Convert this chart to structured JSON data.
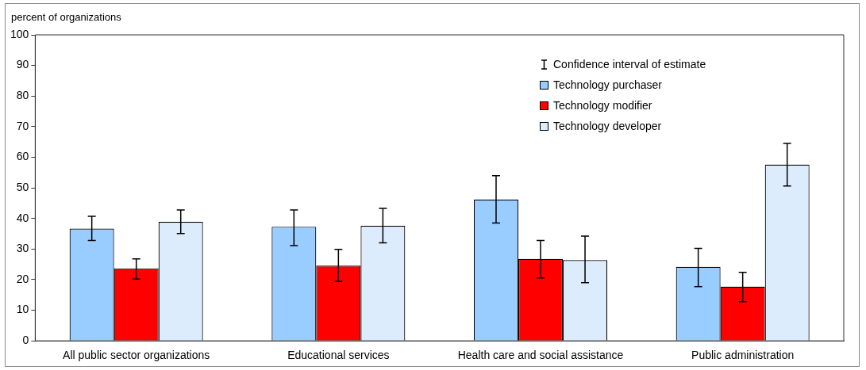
{
  "chart_data": {
    "type": "bar",
    "ylabel": "percent of organizations",
    "categories": [
      "All public sector organizations",
      "Educational services",
      "Health care and social assistance",
      "Public administration"
    ],
    "series": [
      {
        "name": "Technology purchaser",
        "color": "#99ccff",
        "values": [
          36.7,
          37.3,
          46.2,
          24.2
        ],
        "errors": [
          [
            32.8,
            40.7
          ],
          [
            31.1,
            42.8
          ],
          [
            38.5,
            54.0
          ],
          [
            17.7,
            30.2
          ]
        ]
      },
      {
        "name": "Technology modifier",
        "color": "#ff0000",
        "values": [
          23.7,
          24.6,
          26.8,
          17.7
        ],
        "errors": [
          [
            20.2,
            26.8
          ],
          [
            19.4,
            29.9
          ],
          [
            20.6,
            32.8
          ],
          [
            12.8,
            22.4
          ]
        ]
      },
      {
        "name": "Technology developer",
        "color": "#dcecfc",
        "values": [
          38.9,
          37.6,
          26.4,
          57.6
        ],
        "errors": [
          [
            35.1,
            42.8
          ],
          [
            32.0,
            43.3
          ],
          [
            19.0,
            34.2
          ],
          [
            50.6,
            64.5
          ]
        ]
      }
    ],
    "ylim": [
      0,
      100
    ],
    "yticks": [
      0,
      10,
      20,
      30,
      40,
      50,
      60,
      70,
      80,
      90,
      100
    ],
    "grid": false,
    "legend": "top right",
    "annotations": [
      "Confidence interval of estimate"
    ]
  }
}
